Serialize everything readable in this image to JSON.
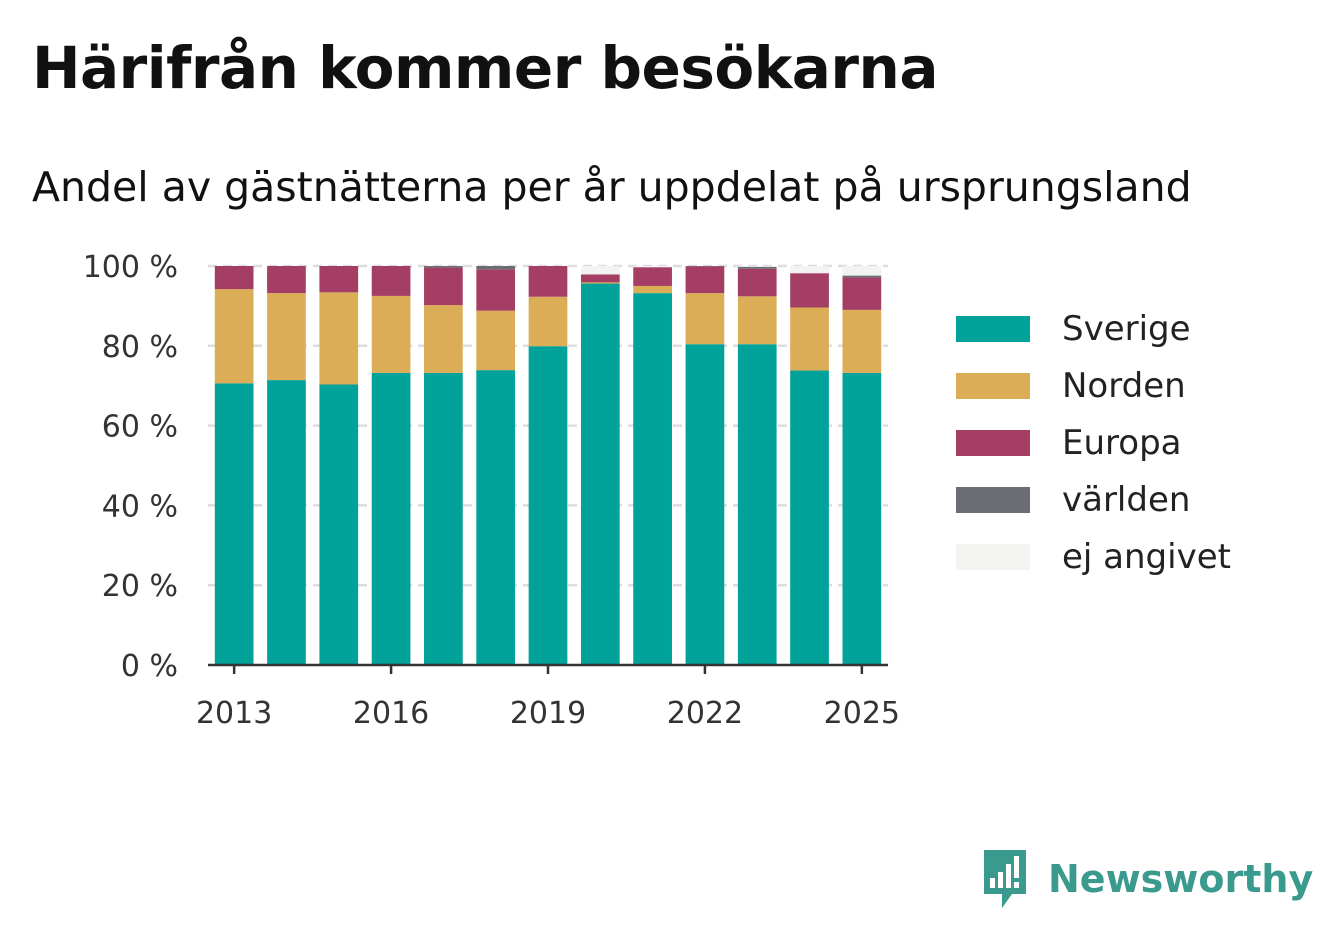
{
  "header": {
    "title": "Härifrån kommer besökarna",
    "subtitle": "Andel av gästnätterna per år uppdelat på ursprungsland"
  },
  "brand": {
    "name": "Newsworthy",
    "icon": "chart-speech-bubble-icon",
    "color": "#3a9a8d"
  },
  "chart_data": {
    "type": "bar",
    "stacked": true,
    "categories": [
      "2013",
      "2014",
      "2015",
      "2016",
      "2017",
      "2018",
      "2019",
      "2020",
      "2021",
      "2022",
      "2023",
      "2024",
      "2025"
    ],
    "x_tick_labels": [
      "2013",
      "2016",
      "2019",
      "2022",
      "2025"
    ],
    "y_tick_labels": [
      "0 %",
      "20 %",
      "40 %",
      "60 %",
      "80 %",
      "100 %"
    ],
    "ylim": [
      0,
      100
    ],
    "grid": true,
    "legend_position": "right",
    "series": [
      {
        "name": "Sverige",
        "color": "#00a299",
        "values": [
          70.6,
          71.4,
          70.3,
          73.2,
          73.2,
          73.9,
          79.9,
          95.6,
          93.2,
          80.4,
          80.4,
          73.8,
          73.2
        ]
      },
      {
        "name": "Norden",
        "color": "#dcad57",
        "values": [
          23.6,
          21.8,
          23.1,
          19.3,
          17.0,
          14.9,
          12.4,
          0.3,
          1.8,
          12.8,
          12.0,
          15.8,
          15.8
        ]
      },
      {
        "name": "Europa",
        "color": "#a53e64",
        "values": [
          5.8,
          6.8,
          6.6,
          7.5,
          9.4,
          10.4,
          7.7,
          2.0,
          4.7,
          6.7,
          6.9,
          8.6,
          8.1
        ]
      },
      {
        "name": "världen",
        "color": "#6c6d74",
        "values": [
          0.0,
          0.0,
          0.0,
          0.0,
          0.4,
          0.8,
          0.0,
          0.0,
          0.0,
          0.1,
          0.5,
          0.0,
          0.5
        ]
      },
      {
        "name": "ej angivet",
        "color": "#f3f3f2",
        "values": [
          0.0,
          0.0,
          0.0,
          0.0,
          0.0,
          0.0,
          0.0,
          2.1,
          0.3,
          0.0,
          0.2,
          1.8,
          2.4
        ]
      }
    ]
  }
}
